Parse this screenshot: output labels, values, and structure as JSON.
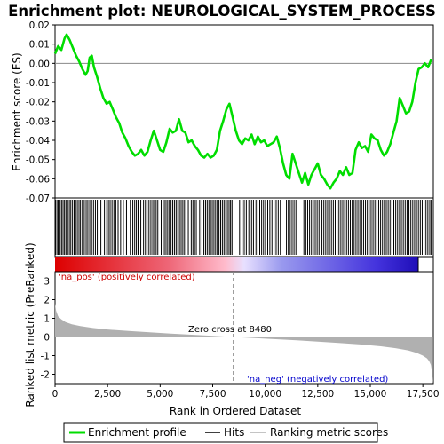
{
  "chart_data": {
    "type": "line",
    "title": "Enrichment plot: NEUROLOGICAL_SYSTEM_PROCESS",
    "xlabel": "Rank in Ordered Dataset",
    "es_ylabel": "Enrichment score (ES)",
    "metric_ylabel": "Ranked list metric (PreRanked)",
    "xlim": [
      0,
      18000
    ],
    "x_ticks": [
      "0",
      "2,500",
      "5,000",
      "7,500",
      "10,000",
      "12,500",
      "15,000",
      "17,500"
    ],
    "x_tick_values": [
      0,
      2500,
      5000,
      7500,
      10000,
      12500,
      15000,
      17500
    ],
    "es_ylim": [
      -0.07,
      0.02
    ],
    "es_ticks": [
      "0.02",
      "0.01",
      "0.00",
      "-0.01",
      "-0.02",
      "-0.03",
      "-0.04",
      "-0.05",
      "-0.06",
      "-0.07"
    ],
    "es_tick_values": [
      0.02,
      0.01,
      0.0,
      -0.01,
      -0.02,
      -0.03,
      -0.04,
      -0.05,
      -0.06,
      -0.07
    ],
    "metric_ylim": [
      -2.5,
      3.5
    ],
    "metric_ticks": [
      "3",
      "2",
      "1",
      "0",
      "-1",
      "-2"
    ],
    "metric_tick_values": [
      3,
      2,
      1,
      0,
      -1,
      -2
    ],
    "zero_cross_label": "Zero cross at 8480",
    "zero_cross": 8480,
    "pos_label": "'na_pos' (positively correlated)",
    "neg_label": "'na_neg' (negatively correlated)",
    "colors": {
      "es_line": "#00dd00",
      "hits": "#000000",
      "metric_fill": "#b0b0b0",
      "pos_text": "#cc0000",
      "neg_text": "#0000cc",
      "zero_line": "#888888"
    },
    "series": [
      {
        "name": "Enrichment profile",
        "x": [
          0,
          150,
          300,
          450,
          550,
          700,
          850,
          1000,
          1150,
          1300,
          1450,
          1550,
          1650,
          1750,
          1850,
          2000,
          2150,
          2300,
          2450,
          2600,
          2750,
          2900,
          3050,
          3200,
          3350,
          3500,
          3650,
          3800,
          3950,
          4100,
          4250,
          4400,
          4550,
          4700,
          4850,
          5000,
          5150,
          5300,
          5450,
          5600,
          5750,
          5900,
          6050,
          6200,
          6350,
          6500,
          6650,
          6800,
          6950,
          7100,
          7250,
          7400,
          7550,
          7700,
          7850,
          8000,
          8150,
          8300,
          8450,
          8600,
          8750,
          8900,
          9050,
          9200,
          9350,
          9500,
          9650,
          9800,
          9950,
          10100,
          10250,
          10400,
          10550,
          10700,
          10850,
          11000,
          11150,
          11300,
          11450,
          11600,
          11750,
          11900,
          12050,
          12200,
          12350,
          12500,
          12650,
          12800,
          12950,
          13100,
          13250,
          13400,
          13550,
          13700,
          13850,
          14000,
          14150,
          14300,
          14450,
          14600,
          14750,
          14900,
          15050,
          15200,
          15350,
          15500,
          15650,
          15800,
          15950,
          16100,
          16250,
          16400,
          16550,
          16700,
          16850,
          17000,
          17150,
          17300,
          17450,
          17600,
          17750,
          17900
        ],
        "values": [
          0.005,
          0.009,
          0.007,
          0.013,
          0.015,
          0.012,
          0.008,
          0.004,
          0.001,
          -0.003,
          -0.006,
          -0.004,
          0.003,
          0.004,
          -0.002,
          -0.007,
          -0.013,
          -0.018,
          -0.021,
          -0.02,
          -0.024,
          -0.028,
          -0.031,
          -0.036,
          -0.039,
          -0.043,
          -0.046,
          -0.048,
          -0.047,
          -0.045,
          -0.048,
          -0.046,
          -0.04,
          -0.035,
          -0.04,
          -0.045,
          -0.046,
          -0.041,
          -0.034,
          -0.036,
          -0.035,
          -0.029,
          -0.035,
          -0.036,
          -0.041,
          -0.04,
          -0.043,
          -0.045,
          -0.048,
          -0.049,
          -0.047,
          -0.049,
          -0.048,
          -0.045,
          -0.035,
          -0.03,
          -0.024,
          -0.021,
          -0.028,
          -0.035,
          -0.04,
          -0.042,
          -0.039,
          -0.04,
          -0.037,
          -0.042,
          -0.038,
          -0.041,
          -0.04,
          -0.043,
          -0.042,
          -0.041,
          -0.038,
          -0.044,
          -0.052,
          -0.058,
          -0.06,
          -0.047,
          -0.052,
          -0.057,
          -0.062,
          -0.057,
          -0.063,
          -0.058,
          -0.055,
          -0.052,
          -0.058,
          -0.06,
          -0.063,
          -0.065,
          -0.062,
          -0.06,
          -0.056,
          -0.058,
          -0.054,
          -0.058,
          -0.057,
          -0.045,
          -0.041,
          -0.044,
          -0.043,
          -0.046,
          -0.037,
          -0.039,
          -0.04,
          -0.045,
          -0.048,
          -0.046,
          -0.042,
          -0.036,
          -0.03,
          -0.018,
          -0.022,
          -0.026,
          -0.025,
          -0.02,
          -0.01,
          -0.003,
          -0.002,
          0.0,
          -0.002,
          0.002
        ]
      }
    ],
    "hits": [
      20,
      90,
      150,
      240,
      310,
      380,
      450,
      520,
      600,
      680,
      750,
      830,
      910,
      980,
      1060,
      1140,
      1210,
      1300,
      1390,
      1480,
      1560,
      1650,
      1740,
      1830,
      1920,
      2010,
      2180,
      2350,
      2460,
      2540,
      2620,
      2710,
      2800,
      2890,
      3000,
      3120,
      3250,
      3400,
      3580,
      3700,
      3790,
      3870,
      3950,
      4080,
      4210,
      4300,
      4380,
      4470,
      4560,
      4650,
      4730,
      4810,
      4890,
      5050,
      5200,
      5280,
      5360,
      5440,
      5520,
      5600,
      5680,
      5760,
      5840,
      5920,
      6000,
      6080,
      6160,
      6340,
      6480,
      6560,
      6640,
      6720,
      6880,
      6990,
      7080,
      7160,
      7240,
      7320,
      7400,
      7480,
      7560,
      7640,
      7720,
      7800,
      7880,
      7960,
      8040,
      8120,
      8200,
      8280,
      8350,
      8420,
      8780,
      8900,
      9000,
      9100,
      9220,
      9350,
      9440,
      9560,
      9650,
      9740,
      9830,
      9920,
      10010,
      10120,
      10220,
      10320,
      10420,
      10520,
      10620,
      10720,
      11010,
      11100,
      11190,
      11280,
      11370,
      11460,
      11840,
      11930,
      12020,
      12110,
      12200,
      12290,
      12380,
      12470,
      12560,
      12700,
      12790,
      12880,
      12970,
      13060,
      13150,
      13240,
      13330,
      13420,
      13510,
      13600,
      13690,
      13780,
      13870,
      13960,
      14050,
      14140,
      14230,
      14320,
      14410,
      14500,
      14590,
      14680,
      14770,
      14860,
      14950,
      15040,
      15130,
      15220,
      15310,
      15400,
      15490,
      15580,
      15670,
      15760,
      15850,
      15940,
      16030,
      16120,
      16210,
      16300,
      16390,
      16480,
      16570,
      16660,
      16750,
      16840,
      16930,
      17020,
      17110,
      17200,
      17290,
      17380,
      17470,
      17560,
      17650,
      17740,
      17830,
      17900
    ],
    "metric_curve": {
      "x": [
        0,
        50,
        150,
        300,
        500,
        800,
        1200,
        1800,
        2500,
        3500,
        4500,
        5500,
        6500,
        7500,
        8480,
        9500,
        10500,
        11500,
        12500,
        13500,
        14500,
        15500,
        16200,
        16800,
        17200,
        17500,
        17700,
        17800,
        17880,
        17940,
        17990
      ],
      "values": [
        1.8,
        1.4,
        1.1,
        0.95,
        0.8,
        0.68,
        0.58,
        0.48,
        0.4,
        0.32,
        0.25,
        0.18,
        0.12,
        0.06,
        0.0,
        -0.06,
        -0.12,
        -0.18,
        -0.25,
        -0.32,
        -0.4,
        -0.5,
        -0.6,
        -0.72,
        -0.85,
        -1.0,
        -1.15,
        -1.3,
        -1.5,
        -1.9,
        -2.5
      ]
    }
  },
  "legend": {
    "items": [
      {
        "label": "Enrichment profile",
        "color": "#00dd00"
      },
      {
        "label": "Hits",
        "color": "#000000"
      },
      {
        "label": "Ranking metric scores",
        "color": "#b0b0b0"
      }
    ]
  }
}
